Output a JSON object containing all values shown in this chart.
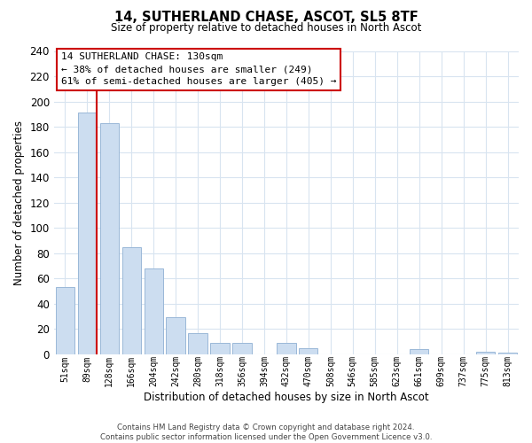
{
  "title": "14, SUTHERLAND CHASE, ASCOT, SL5 8TF",
  "subtitle": "Size of property relative to detached houses in North Ascot",
  "xlabel": "Distribution of detached houses by size in North Ascot",
  "ylabel": "Number of detached properties",
  "categories": [
    "51sqm",
    "89sqm",
    "128sqm",
    "166sqm",
    "204sqm",
    "242sqm",
    "280sqm",
    "318sqm",
    "356sqm",
    "394sqm",
    "432sqm",
    "470sqm",
    "508sqm",
    "546sqm",
    "585sqm",
    "623sqm",
    "661sqm",
    "699sqm",
    "737sqm",
    "775sqm",
    "813sqm"
  ],
  "values": [
    53,
    191,
    183,
    85,
    68,
    29,
    17,
    9,
    9,
    0,
    9,
    5,
    0,
    0,
    0,
    0,
    4,
    0,
    0,
    2,
    1
  ],
  "bar_color": "#ccddf0",
  "bar_edge_color": "#9ab8d8",
  "highlight_line_color": "#cc0000",
  "ylim": [
    0,
    240
  ],
  "yticks": [
    0,
    20,
    40,
    60,
    80,
    100,
    120,
    140,
    160,
    180,
    200,
    220,
    240
  ],
  "annotation_box_text": "14 SUTHERLAND CHASE: 130sqm\n← 38% of detached houses are smaller (249)\n61% of semi-detached houses are larger (405) →",
  "footer_text": "Contains HM Land Registry data © Crown copyright and database right 2024.\nContains public sector information licensed under the Open Government Licence v3.0.",
  "background_color": "#ffffff",
  "grid_color": "#d8e4f0"
}
